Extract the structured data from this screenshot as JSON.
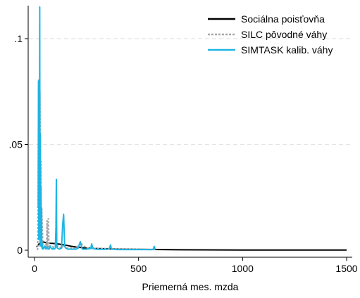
{
  "chart_data": {
    "type": "line",
    "title": "",
    "xlabel": "Priemerná mes. mzda",
    "ylabel": "",
    "xlim": [
      0,
      1500
    ],
    "ylim": [
      0,
      0.1
    ],
    "x_ticks": [
      0,
      500,
      1000,
      1500
    ],
    "x_tick_labels": [
      "0",
      "500",
      "1000",
      "1500"
    ],
    "y_ticks": [
      0,
      0.05,
      0.1
    ],
    "y_tick_labels": [
      "0",
      ".05",
      ".1"
    ],
    "grid": "horizontal dashed",
    "legend_position": "top-right",
    "series": [
      {
        "name": "Sociálna poisťovňa",
        "color": "#000000",
        "style": "solid",
        "x": [
          10,
          20,
          30,
          40,
          50,
          60,
          75,
          90,
          110,
          130,
          150,
          175,
          200,
          250,
          300,
          400,
          500,
          700,
          1000,
          1500
        ],
        "y": [
          0.0015,
          0.0028,
          0.0038,
          0.004,
          0.0037,
          0.0035,
          0.0033,
          0.0032,
          0.003,
          0.0027,
          0.0024,
          0.0019,
          0.0015,
          0.001,
          0.0008,
          0.0005,
          0.0004,
          0.0002,
          0.0001,
          5e-05
        ]
      },
      {
        "name": "SILC pôvodné váhy",
        "color": "#a8a8a8",
        "style": "dashed",
        "x": [
          15,
          17,
          18,
          19,
          21,
          22,
          24,
          26,
          28,
          29,
          31,
          33,
          35,
          40,
          50,
          55,
          58,
          60,
          62,
          64,
          66,
          70,
          80,
          90,
          100,
          105,
          110,
          130,
          140,
          150,
          200,
          220,
          250,
          300,
          350,
          400,
          500,
          550,
          580
        ],
        "y": [
          0.0,
          0.025,
          0.045,
          0.075,
          0.081,
          0.06,
          0.035,
          0.075,
          0.04,
          0.018,
          0.042,
          0.008,
          0.02,
          0.002,
          0.0005,
          0.003,
          0.001,
          0.014,
          0.003,
          0.0005,
          0.015,
          0.002,
          0.002,
          0.0015,
          0.003,
          0.001,
          0.002,
          0.001,
          0.0025,
          0.001,
          0.001,
          0.0035,
          0.001,
          0.0008,
          0.0008,
          0.0006,
          0.0005,
          0.0003,
          0.0003
        ]
      },
      {
        "name": "SIMTASK kalib. váhy",
        "color": "#1fb5e3",
        "style": "solid",
        "x": [
          18,
          19,
          20,
          21,
          22,
          23,
          25,
          26,
          27,
          28,
          29,
          30,
          31,
          32,
          33,
          34,
          35,
          36,
          38,
          40,
          45,
          50,
          55,
          60,
          65,
          70,
          75,
          80,
          85,
          90,
          95,
          100,
          103,
          105,
          107,
          110,
          120,
          130,
          135,
          140,
          145,
          150,
          160,
          180,
          200,
          210,
          220,
          225,
          230,
          250,
          270,
          275,
          280,
          300,
          350,
          360,
          365,
          370,
          400,
          450,
          500,
          550,
          570,
          575,
          580
        ],
        "y": [
          0.02,
          0.08,
          0.005,
          0.04,
          0.06,
          0.01,
          0.115,
          0.035,
          0.002,
          0.055,
          0.03,
          0.003,
          0.03,
          0.01,
          0.002,
          0.02,
          0.002,
          0.001,
          0.003,
          0.0005,
          0.001,
          0.002,
          0.0005,
          0.0015,
          0.001,
          0.0005,
          0.002,
          0.001,
          0.0005,
          0.001,
          0.0005,
          0.001,
          0.011,
          0.0335,
          0.002,
          0.001,
          0.0005,
          0.001,
          0.012,
          0.017,
          0.002,
          0.001,
          0.0005,
          0.0005,
          0.0005,
          0.001,
          0.004,
          0.002,
          0.0005,
          0.0005,
          0.0008,
          0.003,
          0.0008,
          0.0004,
          0.0004,
          0.0008,
          0.0025,
          0.0005,
          0.0003,
          0.0003,
          0.0003,
          0.0003,
          0.0003,
          0.0018,
          0.0003
        ]
      }
    ]
  }
}
